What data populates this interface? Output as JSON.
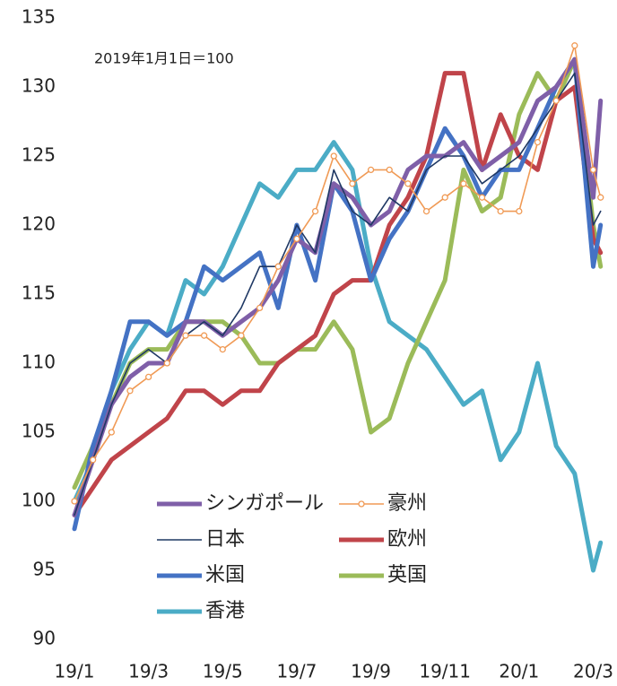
{
  "chart_data": {
    "type": "line",
    "annotation": "2019年1月1日＝100",
    "x": [
      0,
      0.5,
      1,
      1.5,
      2,
      2.5,
      3,
      3.5,
      4,
      4.5,
      5,
      5.5,
      6,
      6.5,
      7,
      7.5,
      8,
      8.5,
      9,
      9.5,
      10,
      10.5,
      11,
      11.5,
      12,
      12.5,
      13,
      13.5,
      14,
      14.2
    ],
    "xlim": [
      0,
      14.4
    ],
    "xticks": [
      {
        "value": 0,
        "label": "19/1"
      },
      {
        "value": 2,
        "label": "19/3"
      },
      {
        "value": 4,
        "label": "19/5"
      },
      {
        "value": 6,
        "label": "19/7"
      },
      {
        "value": 8,
        "label": "19/9"
      },
      {
        "value": 10,
        "label": "19/11"
      },
      {
        "value": 12,
        "label": "20/1"
      },
      {
        "value": 14,
        "label": "20/3"
      }
    ],
    "ylim": [
      90,
      135
    ],
    "yticks": [
      90,
      95,
      100,
      105,
      110,
      115,
      120,
      125,
      130,
      135
    ],
    "grid": false,
    "series": [
      {
        "name": "シンガポール",
        "color": "#7f5fa8",
        "values": [
          99,
          103,
          107,
          109,
          110,
          110,
          113,
          113,
          112,
          113,
          114,
          116,
          119,
          118,
          123,
          122,
          120,
          121,
          124,
          125,
          125,
          126,
          124,
          125,
          126,
          129,
          130,
          132,
          122,
          129
        ]
      },
      {
        "name": "豪州",
        "color": "#f09a55",
        "marker": true,
        "values": [
          100,
          103,
          105,
          108,
          109,
          110,
          112,
          112,
          111,
          112,
          114,
          117,
          119,
          121,
          125,
          123,
          124,
          124,
          123,
          121,
          122,
          123,
          122,
          121,
          121,
          126,
          129,
          133,
          124,
          122
        ]
      },
      {
        "name": "日本",
        "color": "#1f3864",
        "values": [
          99,
          103,
          107,
          110,
          111,
          110,
          112,
          113,
          112,
          114,
          117,
          117,
          120,
          118,
          124,
          121,
          120,
          122,
          121,
          124,
          125,
          125,
          123,
          124,
          125,
          127,
          129,
          131,
          120,
          121
        ]
      },
      {
        "name": "欧州",
        "color": "#c0444a",
        "values": [
          99,
          101,
          103,
          104,
          105,
          106,
          108,
          108,
          107,
          108,
          108,
          110,
          111,
          112,
          115,
          116,
          116,
          120,
          122,
          125,
          131,
          131,
          124,
          128,
          125,
          124,
          129,
          130,
          119,
          118
        ]
      },
      {
        "name": "米国",
        "color": "#4472c4",
        "values": [
          98,
          104,
          108,
          113,
          113,
          112,
          113,
          117,
          116,
          117,
          118,
          114,
          120,
          116,
          123,
          121,
          116,
          119,
          121,
          124,
          127,
          125,
          122,
          124,
          124,
          127,
          130,
          132,
          117,
          120
        ]
      },
      {
        "name": "英国",
        "color": "#9bbb59",
        "values": [
          101,
          104,
          107,
          110,
          111,
          111,
          113,
          113,
          113,
          112,
          110,
          110,
          111,
          111,
          113,
          111,
          105,
          106,
          110,
          113,
          116,
          124,
          121,
          122,
          128,
          131,
          129,
          132,
          120,
          117
        ]
      },
      {
        "name": "香港",
        "color": "#4bacc6",
        "values": [
          100,
          103,
          108,
          111,
          113,
          112,
          116,
          115,
          117,
          120,
          123,
          122,
          124,
          124,
          126,
          124,
          117,
          113,
          112,
          111,
          109,
          107,
          108,
          103,
          105,
          110,
          104,
          102,
          95,
          97
        ]
      }
    ]
  }
}
